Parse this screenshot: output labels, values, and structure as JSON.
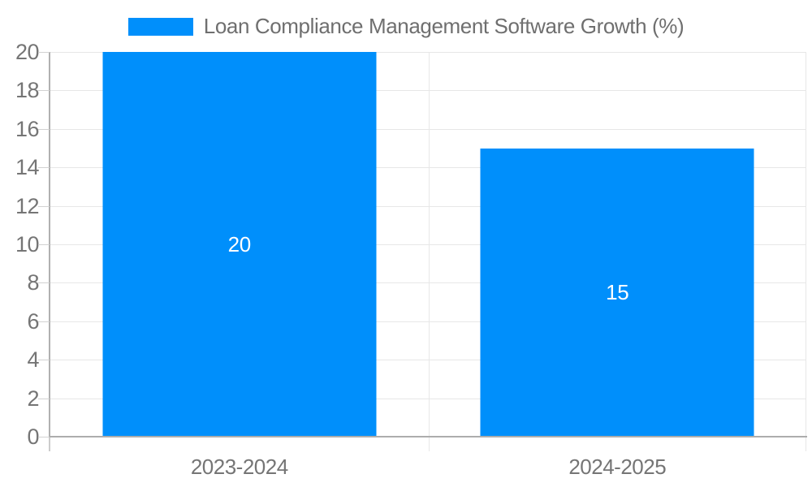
{
  "legend": {
    "label": "Loan Compliance Management Software Growth (%)",
    "swatch_color": "#008FFB"
  },
  "chart_data": {
    "type": "bar",
    "title": "Loan Compliance Management Software Growth (%)",
    "categories": [
      "2023-2024",
      "2024-2025"
    ],
    "series": [
      {
        "name": "Loan Compliance Management Software Growth (%)",
        "color": "#008FFB",
        "values": [
          20,
          15
        ]
      }
    ],
    "data_labels": [
      "20",
      "15"
    ],
    "xlabel": "",
    "ylabel": "",
    "ylim": [
      0,
      20
    ],
    "ytick_step": 2,
    "yticks": [
      0,
      2,
      4,
      6,
      8,
      10,
      12,
      14,
      16,
      18,
      20
    ],
    "grid": true,
    "legend_position": "top",
    "bar_width_fraction": 0.724
  },
  "colors": {
    "bar": "#008FFB",
    "data_label_text": "#ffffff",
    "axis_text": "#757575",
    "legend_text": "#6f6f6f",
    "gridline": "#e7e7e7",
    "axis_line": "#b0b0b0",
    "tick": "#d2d2d2",
    "background": "#ffffff"
  }
}
